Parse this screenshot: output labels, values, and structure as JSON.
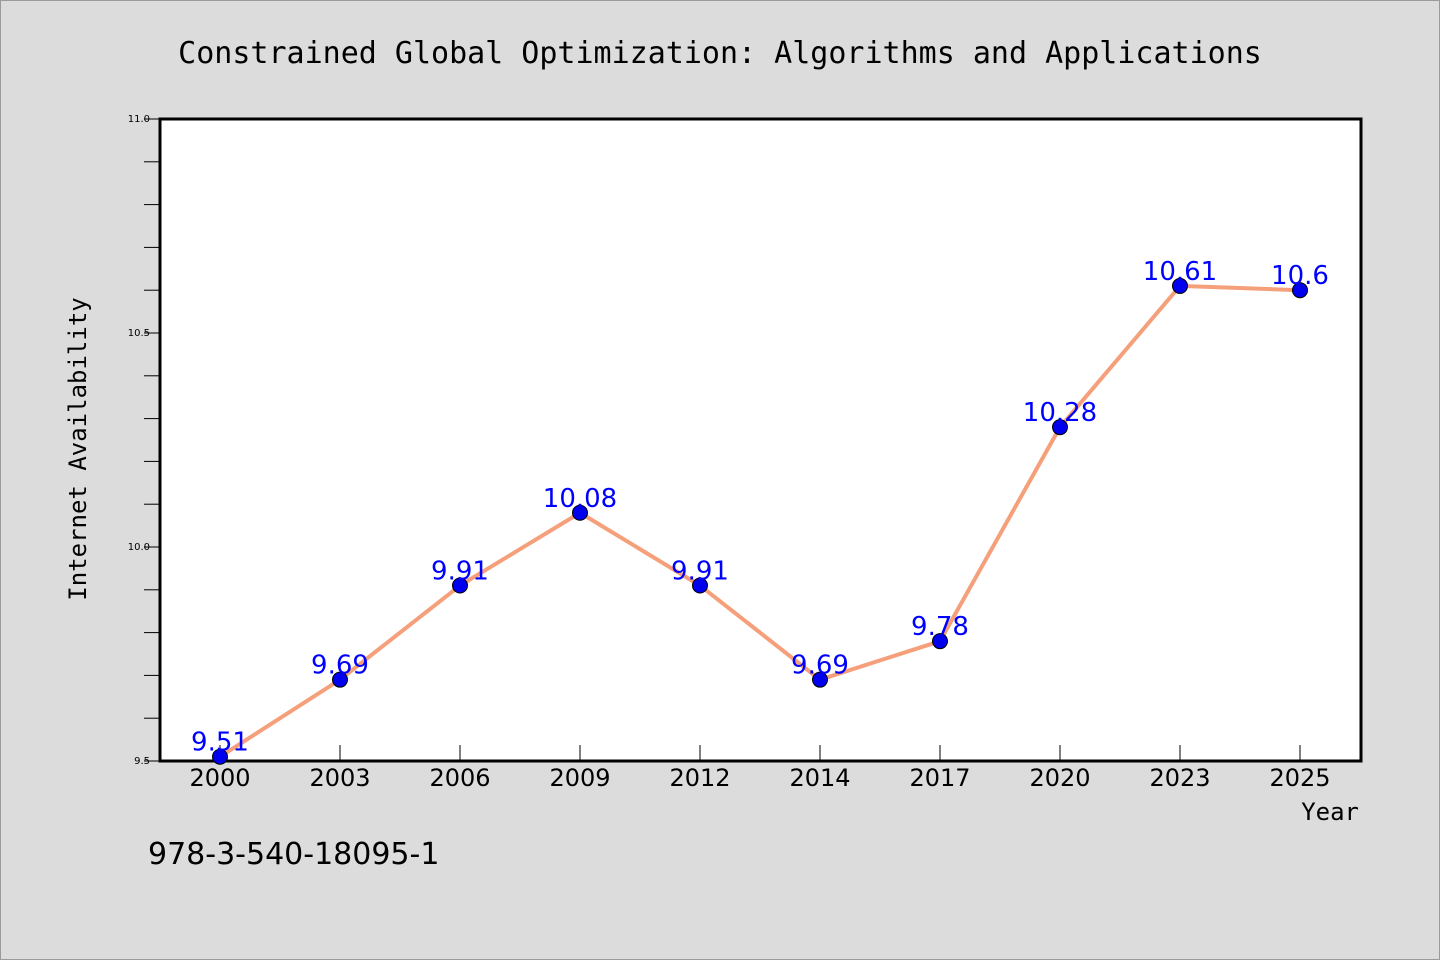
{
  "colors": {
    "background": "#dcdcdc",
    "plot_background": "#ffffff",
    "line": "#f5a07a",
    "marker": "#0000ee",
    "data_label": "#0000ff",
    "text": "#000000"
  },
  "isbn": "978-3-540-18095-1",
  "chart_data": {
    "type": "line",
    "title": "Constrained Global Optimization: Algorithms and Applications",
    "xlabel": "Year",
    "ylabel": "Internet Availability",
    "categories": [
      "2000",
      "2003",
      "2006",
      "2009",
      "2012",
      "2014",
      "2017",
      "2020",
      "2023",
      "2025"
    ],
    "values": [
      9.51,
      9.69,
      9.91,
      10.08,
      9.91,
      9.69,
      9.78,
      10.28,
      10.61,
      10.6
    ],
    "data_labels": [
      "9.51",
      "9.69",
      "9.91",
      "10.08",
      "9.91",
      "9.69",
      "9.78",
      "10.28",
      "10.61",
      "10.6"
    ],
    "ylim": [
      9.5,
      11.0
    ],
    "yticks": [
      "9.5",
      "10.0",
      "10.5",
      "11.0"
    ],
    "grid": false,
    "legend": "none"
  }
}
